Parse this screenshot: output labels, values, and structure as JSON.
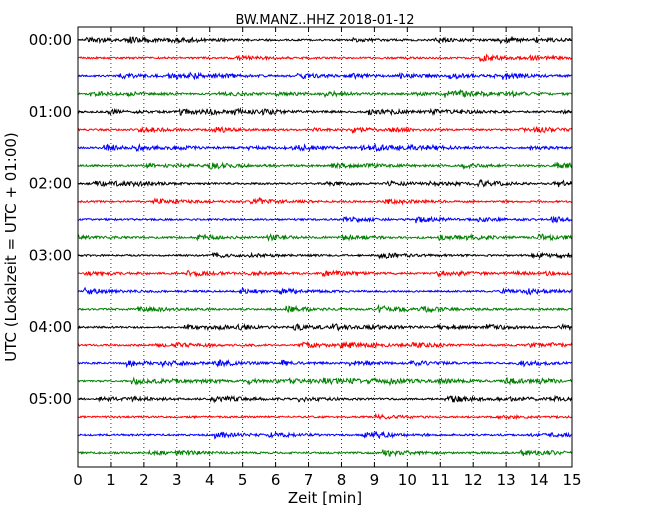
{
  "chart_data": {
    "type": "line",
    "title": "BW.MANZ..HHZ 2018-01-12",
    "xlabel": "Zeit  [min]",
    "ylabel": "UTC (Lokalzeit = UTC + 01:00)",
    "xlim": [
      0,
      15
    ],
    "x_ticks": [
      0,
      1,
      2,
      3,
      4,
      5,
      6,
      7,
      8,
      9,
      10,
      11,
      12,
      13,
      14,
      15
    ],
    "y_tick_labels": [
      "00:00",
      "01:00",
      "02:00",
      "03:00",
      "04:00",
      "05:00"
    ],
    "grid": "vertical dotted",
    "trace_interval_minutes": 15,
    "trace_count": 24,
    "trace_colors": [
      "#000000",
      "#ff0000",
      "#0000ff",
      "#008000"
    ]
  }
}
